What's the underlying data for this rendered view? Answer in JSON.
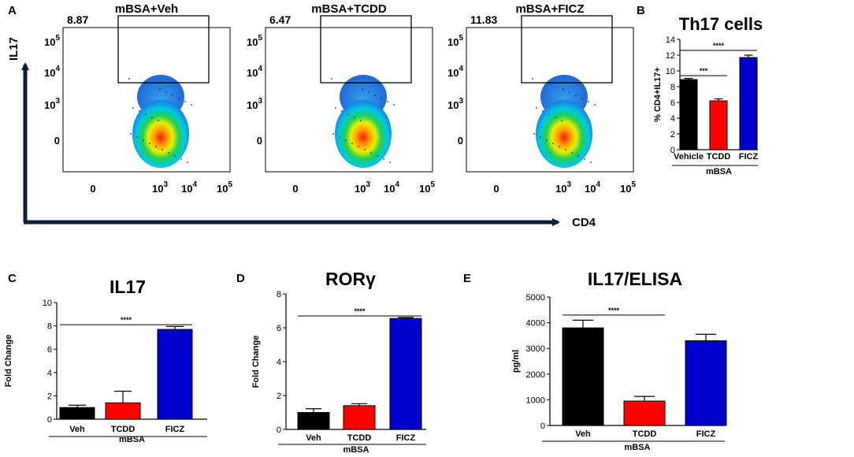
{
  "panel_letters": {
    "a": "A",
    "b": "B",
    "c": "C",
    "d": "D",
    "e": "E"
  },
  "flow": {
    "x_axis_label": "CD4",
    "y_axis_label": "IL17",
    "y_ticks": [
      {
        "base": "0",
        "exp": ""
      },
      {
        "base": "10",
        "exp": "3"
      },
      {
        "base": "10",
        "exp": "4"
      },
      {
        "base": "10",
        "exp": "5"
      }
    ],
    "x_ticks": [
      {
        "base": "0",
        "exp": ""
      },
      {
        "base": "10",
        "exp": "3"
      },
      {
        "base": "10",
        "exp": "4"
      },
      {
        "base": "10",
        "exp": "5"
      }
    ],
    "plots": [
      {
        "title": "mBSA+Veh",
        "gate_value": "8.87"
      },
      {
        "title": "mBSA+TCDD",
        "gate_value": "6.47"
      },
      {
        "title": "mBSA+FICZ",
        "gate_value": "11.83"
      }
    ]
  },
  "chart_data": [
    {
      "id": "B",
      "type": "bar",
      "title": "Th17 cells",
      "xlabel": "mBSA",
      "ylabel": "% CD4+IL17+",
      "ylim": [
        0,
        14
      ],
      "yticks": [
        0,
        2,
        4,
        6,
        8,
        10,
        12,
        14
      ],
      "categories": [
        "Vehicle",
        "TCDD",
        "FICZ"
      ],
      "values": [
        8.9,
        6.2,
        11.7
      ],
      "errors": [
        0.15,
        0.25,
        0.3
      ],
      "colors": [
        "#000000",
        "#ff0000",
        "#0000cc"
      ],
      "significance": [
        {
          "from": 0,
          "to": 1,
          "label": "***",
          "y": 9.4
        },
        {
          "from": 0,
          "to": 2,
          "label": "****",
          "y": 12.6
        }
      ]
    },
    {
      "id": "C",
      "type": "bar",
      "title": "IL17",
      "xlabel": "mBSA",
      "ylabel": "Fold Change",
      "ylim": [
        0,
        10
      ],
      "yticks": [
        0,
        2,
        4,
        6,
        8,
        10
      ],
      "categories": [
        "Veh",
        "TCDD",
        "FICZ"
      ],
      "values": [
        1.0,
        1.4,
        7.7
      ],
      "errors": [
        0.2,
        1.0,
        0.25
      ],
      "colors": [
        "#000000",
        "#ff0000",
        "#0000cc"
      ],
      "significance": [
        {
          "from": 0,
          "to": 2,
          "label": "****",
          "y": 8.1
        }
      ]
    },
    {
      "id": "D",
      "type": "bar",
      "title": "RORγ",
      "xlabel": "mBSA",
      "ylabel": "Fold Change",
      "ylim": [
        0,
        8
      ],
      "yticks": [
        0,
        2,
        4,
        6,
        8
      ],
      "categories": [
        "Veh",
        "TCDD",
        "FICZ"
      ],
      "values": [
        1.0,
        1.4,
        6.55
      ],
      "errors": [
        0.22,
        0.12,
        0.06
      ],
      "colors": [
        "#000000",
        "#ff0000",
        "#0000cc"
      ],
      "significance": [
        {
          "from": 0,
          "to": 2,
          "label": "****",
          "y": 6.7
        }
      ]
    },
    {
      "id": "E",
      "type": "bar",
      "title": "IL17/ELISA",
      "xlabel": "mBSA",
      "ylabel": "pg/ml",
      "ylim": [
        0,
        5000
      ],
      "yticks": [
        0,
        1000,
        2000,
        3000,
        4000,
        5000
      ],
      "categories": [
        "Veh",
        "TCDD",
        "FICZ"
      ],
      "values": [
        3800,
        950,
        3300
      ],
      "errors": [
        300,
        180,
        250
      ],
      "colors": [
        "#000000",
        "#ff0000",
        "#0000cc"
      ],
      "significance": [
        {
          "from": 0,
          "to": 1,
          "label": "****",
          "y": 4300
        }
      ]
    }
  ]
}
